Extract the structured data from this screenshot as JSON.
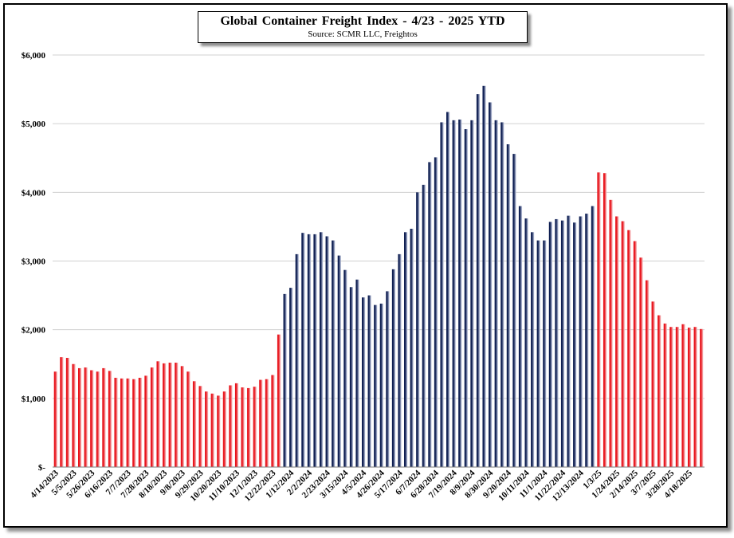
{
  "chart_data": {
    "type": "bar",
    "title": "Global Container Freight Index - 4/23 - 2025 YTD",
    "subtitle": "Source: SCMR LLC, Freightos",
    "ylim": [
      0,
      6000
    ],
    "y_ticks": [
      "$-",
      "$1,000",
      "$2,000",
      "$3,000",
      "$4,000",
      "$5,000",
      "$6,000"
    ],
    "grid": true,
    "x_tick_labels": [
      "4/14/2023",
      "5/5/2023",
      "5/26/2023",
      "6/16/2023",
      "7/7/2023",
      "7/28/2023",
      "8/18/2023",
      "9/8/2023",
      "9/29/2023",
      "10/20/2023",
      "11/10/2023",
      "12/1/2023",
      "12/22/2023",
      "1/12/2024",
      "2/2/2024",
      "2/23/2024",
      "3/15/2024",
      "4/5/2024",
      "4/26/2024",
      "5/17/2024",
      "6/7/2024",
      "6/28/2024",
      "7/19/2024",
      "8/9/2024",
      "8/30/2024",
      "9/20/2024",
      "10/11/2024",
      "11/1/2024",
      "11/22/2024",
      "12/13/2024",
      "1/3/25",
      "1/24/2025",
      "2/14/2025",
      "3/7/2025",
      "3/28/2025",
      "4/18/2025"
    ],
    "series": [
      {
        "color": "#e8141c",
        "values": [
          1390,
          1600,
          1590,
          1500,
          1440,
          1450,
          1410,
          1390,
          1440,
          1400,
          1300,
          1290,
          1290,
          1280,
          1300,
          1330,
          1450,
          1540,
          1510,
          1520,
          1520,
          1470,
          1390,
          1250,
          1180,
          1100,
          1070,
          1040,
          1100,
          1190,
          1220,
          1160,
          1150,
          1170,
          1270,
          1280,
          1340,
          1930
        ]
      },
      {
        "color": "#0f1f52",
        "values": [
          2520,
          2610,
          3100,
          3410,
          3390,
          3390,
          3420,
          3360,
          3300,
          3080,
          2870,
          2620,
          2730,
          2470,
          2500,
          2360,
          2380,
          2560,
          2880,
          3100,
          3420,
          3470,
          4000,
          4110,
          4440,
          4510,
          5020,
          5170,
          5050,
          5060,
          4920,
          5050,
          5430,
          5550,
          5310,
          5050,
          5020,
          4700,
          4560,
          3800,
          3620,
          3420,
          3300,
          3300,
          3570,
          3610,
          3590,
          3660,
          3560,
          3650,
          3690,
          3800
        ]
      },
      {
        "color": "#e8141c",
        "values": [
          4290,
          4280,
          3890,
          3650,
          3580,
          3450,
          3290,
          3050,
          2720,
          2410,
          2210,
          2090,
          2040,
          2040,
          2080,
          2030,
          2040,
          2010
        ]
      }
    ]
  }
}
